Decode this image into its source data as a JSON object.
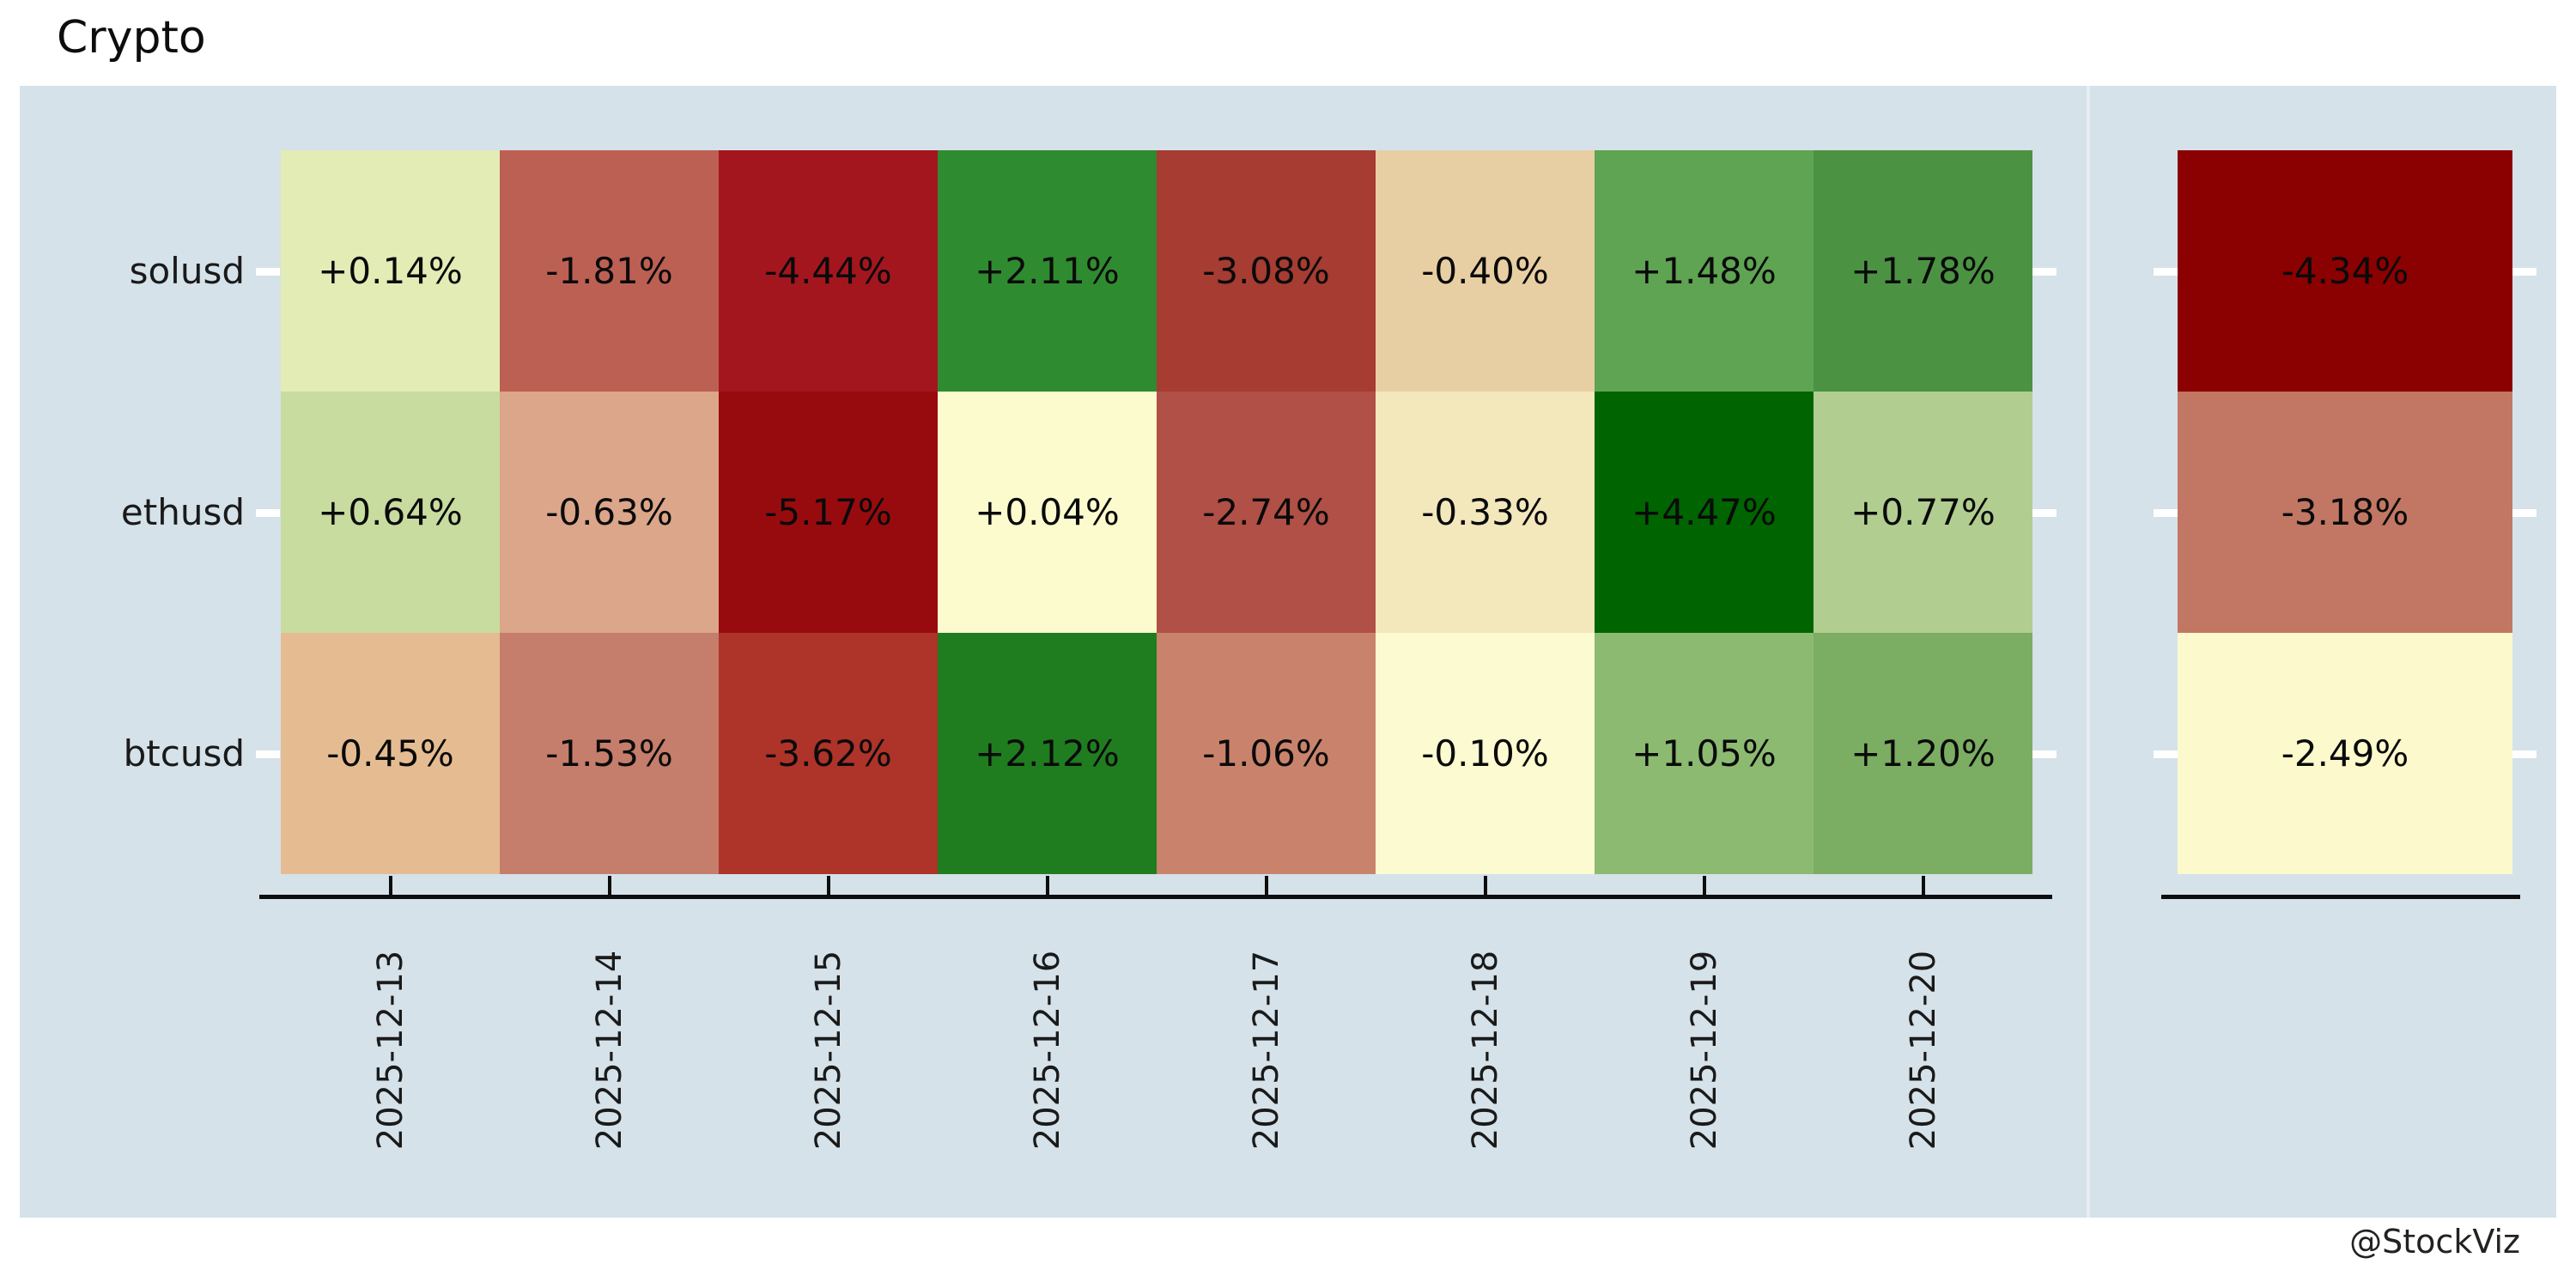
{
  "title": "Crypto",
  "watermark": "@StockViz",
  "colors": {
    "page_bg": "#ffffff",
    "panel_bg": "#d5e2e9",
    "axis": "#0d0d0d",
    "tick_marker": "#ffffff",
    "cell_text": "#0a0a0a",
    "label_text": "#1a1a1a"
  },
  "chart_data": {
    "type": "heatmap",
    "title": "Crypto",
    "x_labels": [
      "2025-12-13",
      "2025-12-14",
      "2025-12-15",
      "2025-12-16",
      "2025-12-17",
      "2025-12-18",
      "2025-12-19",
      "2025-12-20"
    ],
    "y_labels": [
      "solusd",
      "ethusd",
      "btcusd"
    ],
    "series": [
      {
        "name": "solusd",
        "labels": [
          "+0.14%",
          "-1.81%",
          "-4.44%",
          "+2.11%",
          "-3.08%",
          "-0.40%",
          "+1.48%",
          "+1.78%"
        ],
        "values": [
          0.14,
          -1.81,
          -4.44,
          2.11,
          -3.08,
          -0.4,
          1.48,
          1.78
        ],
        "colors": [
          "#e3ecb4",
          "#bd6054",
          "#a3161e",
          "#2f8b2f",
          "#a63c32",
          "#e8cfa3",
          "#5ea452",
          "#4b9343"
        ]
      },
      {
        "name": "ethusd",
        "labels": [
          "+0.64%",
          "-0.63%",
          "-5.17%",
          "+0.04%",
          "-2.74%",
          "-0.33%",
          "+4.47%",
          "+0.77%"
        ],
        "values": [
          0.64,
          -0.63,
          -5.17,
          0.04,
          -2.74,
          -0.33,
          4.47,
          0.77
        ],
        "colors": [
          "#c8dc9f",
          "#dba68a",
          "#970b0e",
          "#fbfbce",
          "#b05046",
          "#f3e7bc",
          "#006400",
          "#b1ce90"
        ]
      },
      {
        "name": "btcusd",
        "labels": [
          "-0.45%",
          "-1.53%",
          "-3.62%",
          "+2.12%",
          "-1.06%",
          "-0.10%",
          "+1.05%",
          "+1.20%"
        ],
        "values": [
          -0.45,
          -1.53,
          -3.62,
          2.12,
          -1.06,
          -0.1,
          1.05,
          1.2
        ],
        "colors": [
          "#e5bc92",
          "#c57e6b",
          "#ae3329",
          "#1f7d1f",
          "#c9836d",
          "#fbfad0",
          "#8cba71",
          "#7bad62"
        ]
      }
    ],
    "summary_column": {
      "labels": [
        "-4.34%",
        "-3.18%",
        "-2.49%"
      ],
      "values": [
        -4.34,
        -3.18,
        -2.49
      ],
      "colors": [
        "#8b0000",
        "#c17763",
        "#fcf9cc"
      ]
    },
    "layout_hints": {
      "x_tick_rotation": 90,
      "grid": false,
      "legend": "none",
      "facets": 2
    }
  }
}
